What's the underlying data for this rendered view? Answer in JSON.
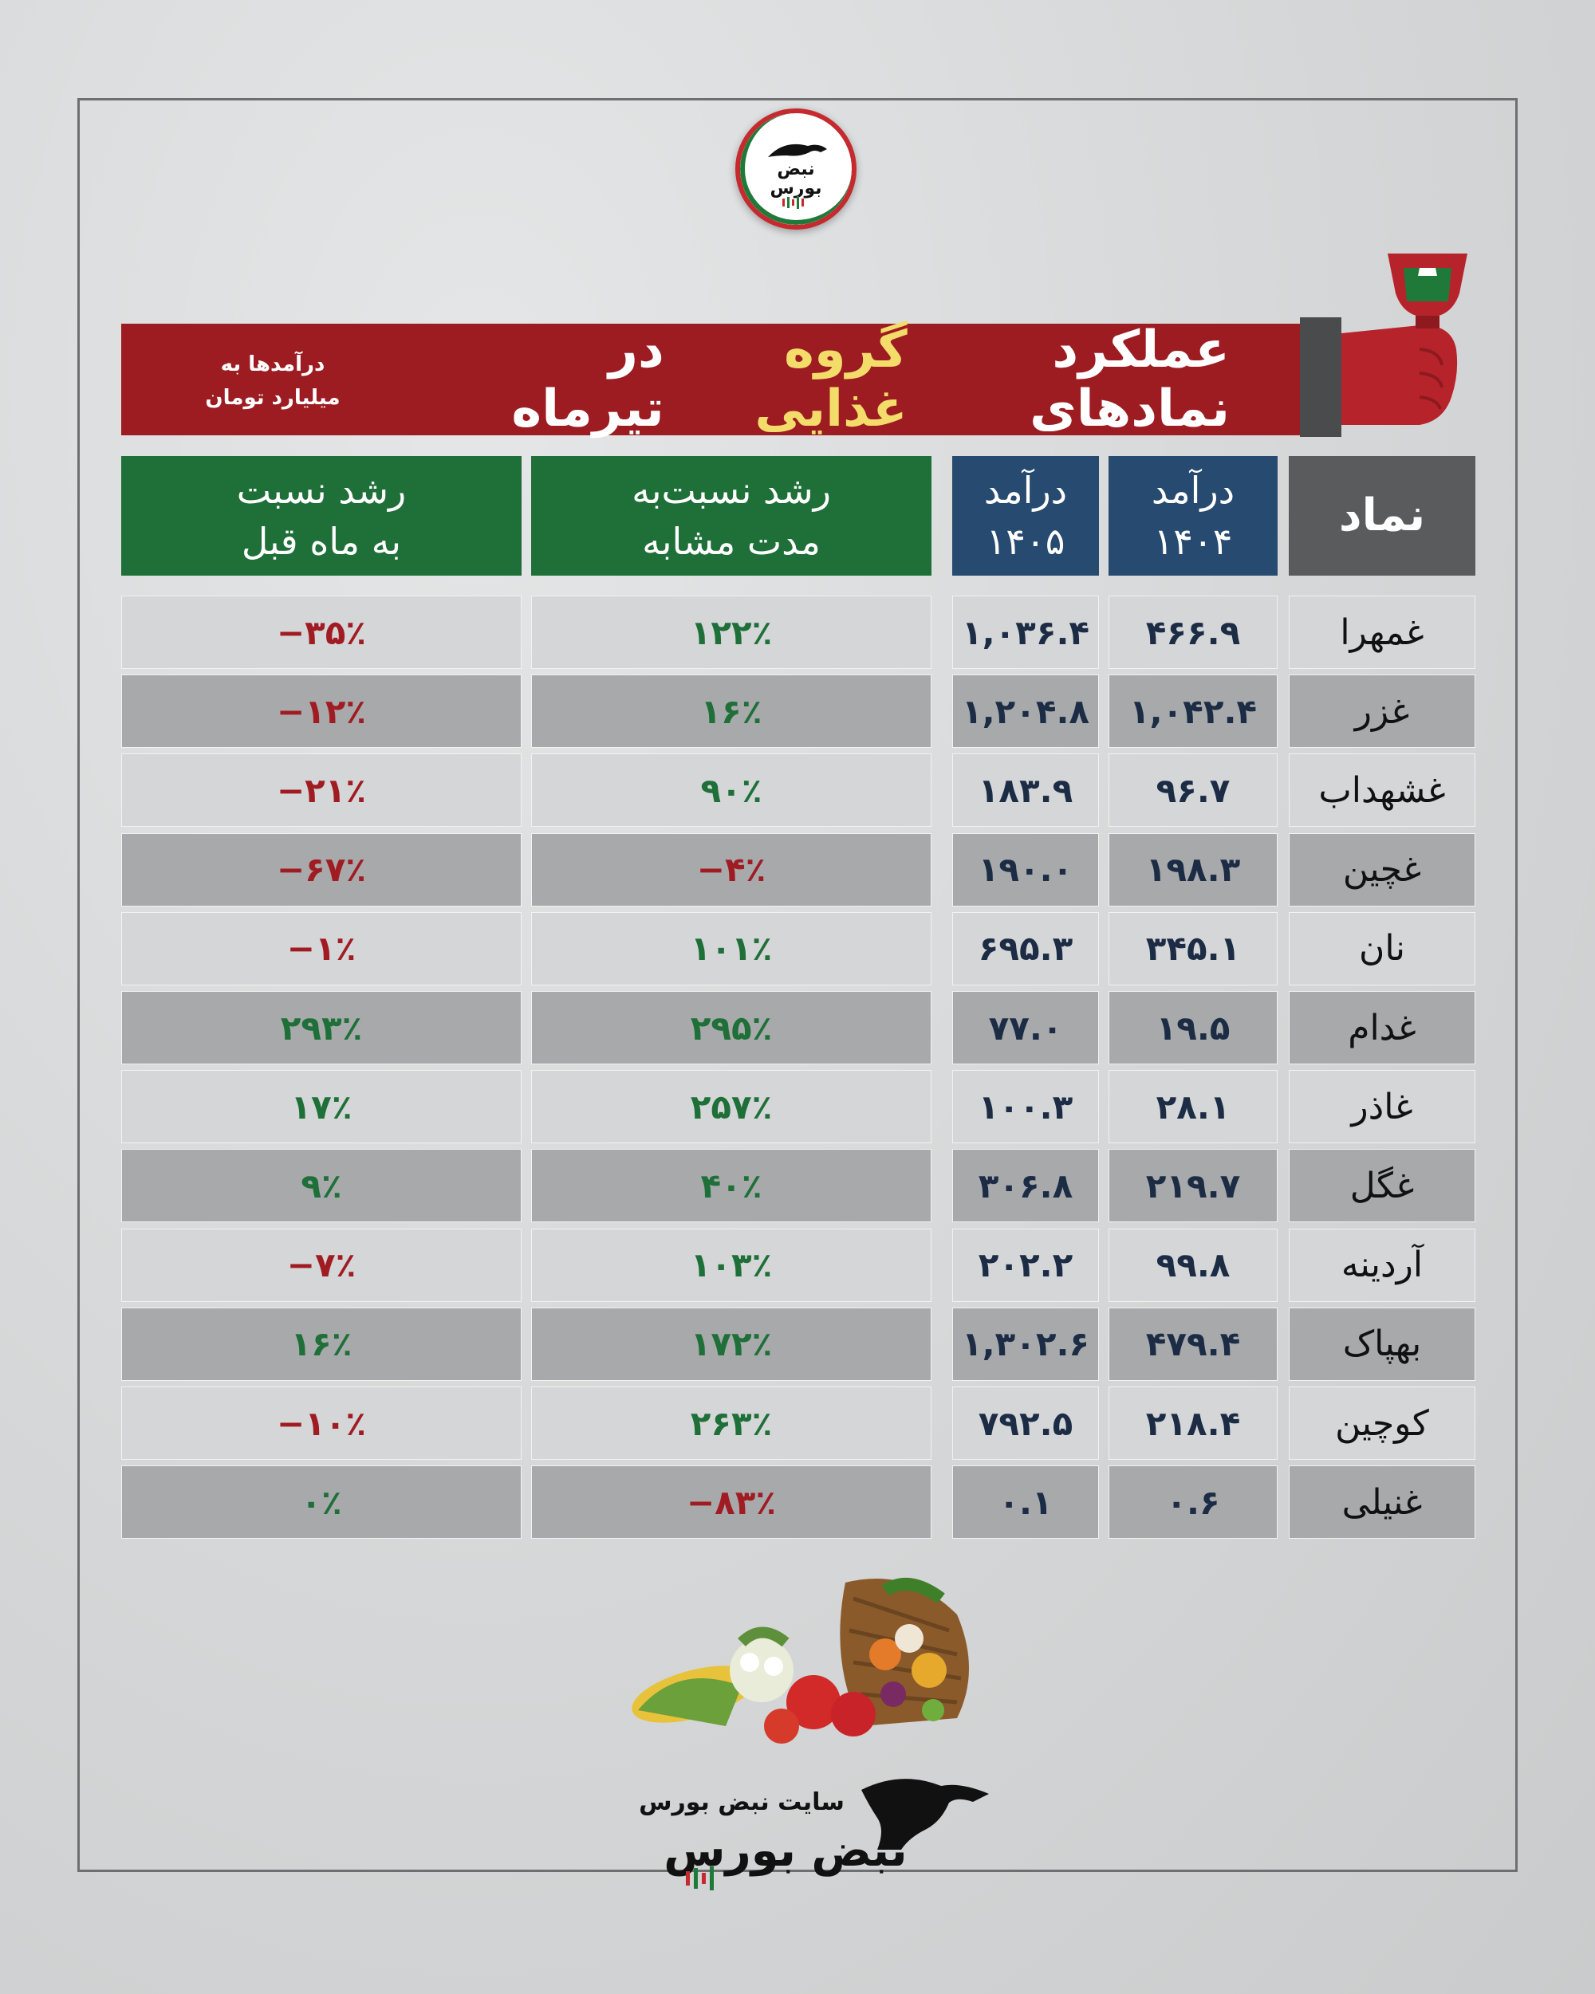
{
  "banner": {
    "title_part1": "عملکرد نمادهای",
    "title_highlight": "گروه غذایی",
    "title_part2": "در تیرماه",
    "note_line1": "درآمدها به",
    "note_line2": "میلیارد تومان"
  },
  "logo": {
    "text_top": "نبض",
    "text_bottom": "بورس"
  },
  "headers": {
    "mom_line1": "رشد نسبت",
    "mom_line2": "به ماه قبل",
    "yoy_line1": "رشد نسبت‌به",
    "yoy_line2": "مدت مشابه",
    "r05_line1": "درآمد",
    "r05_line2": "۱۴۰۵",
    "r04_line1": "درآمد",
    "r04_line2": "۱۴۰۴",
    "symbol": "نماد"
  },
  "rows": [
    {
      "symbol": "غمهرا",
      "r04": "۴۶۶.۹",
      "r05": "۱,۰۳۶.۴",
      "yoy": "۱۲۲٪",
      "yoy_sign": "pos",
      "mom": "−۳۵٪",
      "mom_sign": "neg"
    },
    {
      "symbol": "غزر",
      "r04": "۱,۰۴۲.۴",
      "r05": "۱,۲۰۴.۸",
      "yoy": "۱۶٪",
      "yoy_sign": "pos",
      "mom": "−۱۲٪",
      "mom_sign": "neg"
    },
    {
      "symbol": "غشهداب",
      "r04": "۹۶.۷",
      "r05": "۱۸۳.۹",
      "yoy": "۹۰٪",
      "yoy_sign": "pos",
      "mom": "−۲۱٪",
      "mom_sign": "neg"
    },
    {
      "symbol": "غچین",
      "r04": "۱۹۸.۳",
      "r05": "۱۹۰.۰",
      "yoy": "−۴٪",
      "yoy_sign": "neg",
      "mom": "−۶۷٪",
      "mom_sign": "neg"
    },
    {
      "symbol": "نان",
      "r04": "۳۴۵.۱",
      "r05": "۶۹۵.۳",
      "yoy": "۱۰۱٪",
      "yoy_sign": "pos",
      "mom": "−۱٪",
      "mom_sign": "neg"
    },
    {
      "symbol": "غدام",
      "r04": "۱۹.۵",
      "r05": "۷۷.۰",
      "yoy": "۲۹۵٪",
      "yoy_sign": "pos",
      "mom": "۲۹۳٪",
      "mom_sign": "pos"
    },
    {
      "symbol": "غاذر",
      "r04": "۲۸.۱",
      "r05": "۱۰۰.۳",
      "yoy": "۲۵۷٪",
      "yoy_sign": "pos",
      "mom": "۱۷٪",
      "mom_sign": "pos"
    },
    {
      "symbol": "غگل",
      "r04": "۲۱۹.۷",
      "r05": "۳۰۶.۸",
      "yoy": "۴۰٪",
      "yoy_sign": "pos",
      "mom": "۹٪",
      "mom_sign": "pos"
    },
    {
      "symbol": "آردینه",
      "r04": "۹۹.۸",
      "r05": "۲۰۲.۲",
      "yoy": "۱۰۳٪",
      "yoy_sign": "pos",
      "mom": "−۷٪",
      "mom_sign": "neg"
    },
    {
      "symbol": "بهپاک",
      "r04": "۴۷۹.۴",
      "r05": "۱,۳۰۲.۶",
      "yoy": "۱۷۲٪",
      "yoy_sign": "pos",
      "mom": "۱۶٪",
      "mom_sign": "pos"
    },
    {
      "symbol": "کوچین",
      "r04": "۲۱۸.۴",
      "r05": "۷۹۲.۵",
      "yoy": "۲۶۳٪",
      "yoy_sign": "pos",
      "mom": "−۱۰٪",
      "mom_sign": "neg"
    },
    {
      "symbol": "غنیلی",
      "r04": "۰.۶",
      "r05": "۰.۱",
      "yoy": "−۸۳٪",
      "yoy_sign": "neg",
      "mom": "۰٪",
      "mom_sign": "pos"
    }
  ],
  "footer": {
    "site_label": "سایت نبض بورس",
    "brand": "نبض بورس"
  },
  "colors": {
    "banner": "#9c1c22",
    "highlight": "#f3dc6a",
    "green_header": "#1f6f38",
    "blue_header": "#274a70",
    "gray_header": "#5a5b5d",
    "positive": "#1f6f38",
    "negative": "#a01c22"
  }
}
